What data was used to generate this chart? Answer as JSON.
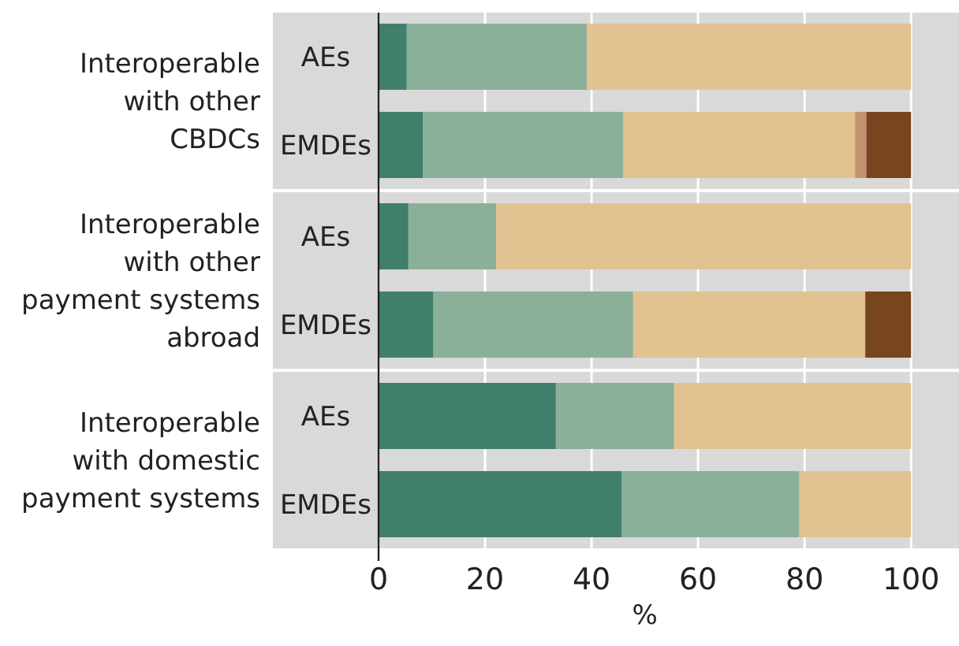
{
  "chart_data": {
    "type": "bar",
    "orientation": "horizontal",
    "stacked": true,
    "xlabel": "%",
    "categories": [
      "AEs",
      "EMDEs",
      "AEs",
      "EMDEs",
      "AEs",
      "EMDEs"
    ],
    "annotations": [
      "Interoperable with other CBDCs",
      "Interoperable with other payment systems abroad",
      "Interoperable with domestic payment systems"
    ],
    "series": [
      {
        "color": "#417f6d",
        "values": [
          5.3,
          8.3,
          5.6,
          10.3,
          33.3,
          45.7
        ]
      },
      {
        "color": "#8bb09a",
        "values": [
          33.8,
          37.6,
          16.5,
          37.5,
          22.2,
          33.3
        ]
      },
      {
        "color": "#e2c290",
        "values": [
          60.9,
          43.6,
          77.9,
          43.6,
          44.5,
          21
        ]
      },
      {
        "color": "#c49270",
        "values": [
          0,
          2.1,
          0,
          0,
          0,
          0
        ]
      },
      {
        "color": "#77461f",
        "values": [
          0,
          8.4,
          0,
          8.6,
          0,
          0
        ]
      }
    ],
    "xlim": [
      0,
      109
    ],
    "xticks": [
      0,
      20,
      40,
      60,
      80,
      100
    ],
    "grid": "x"
  }
}
